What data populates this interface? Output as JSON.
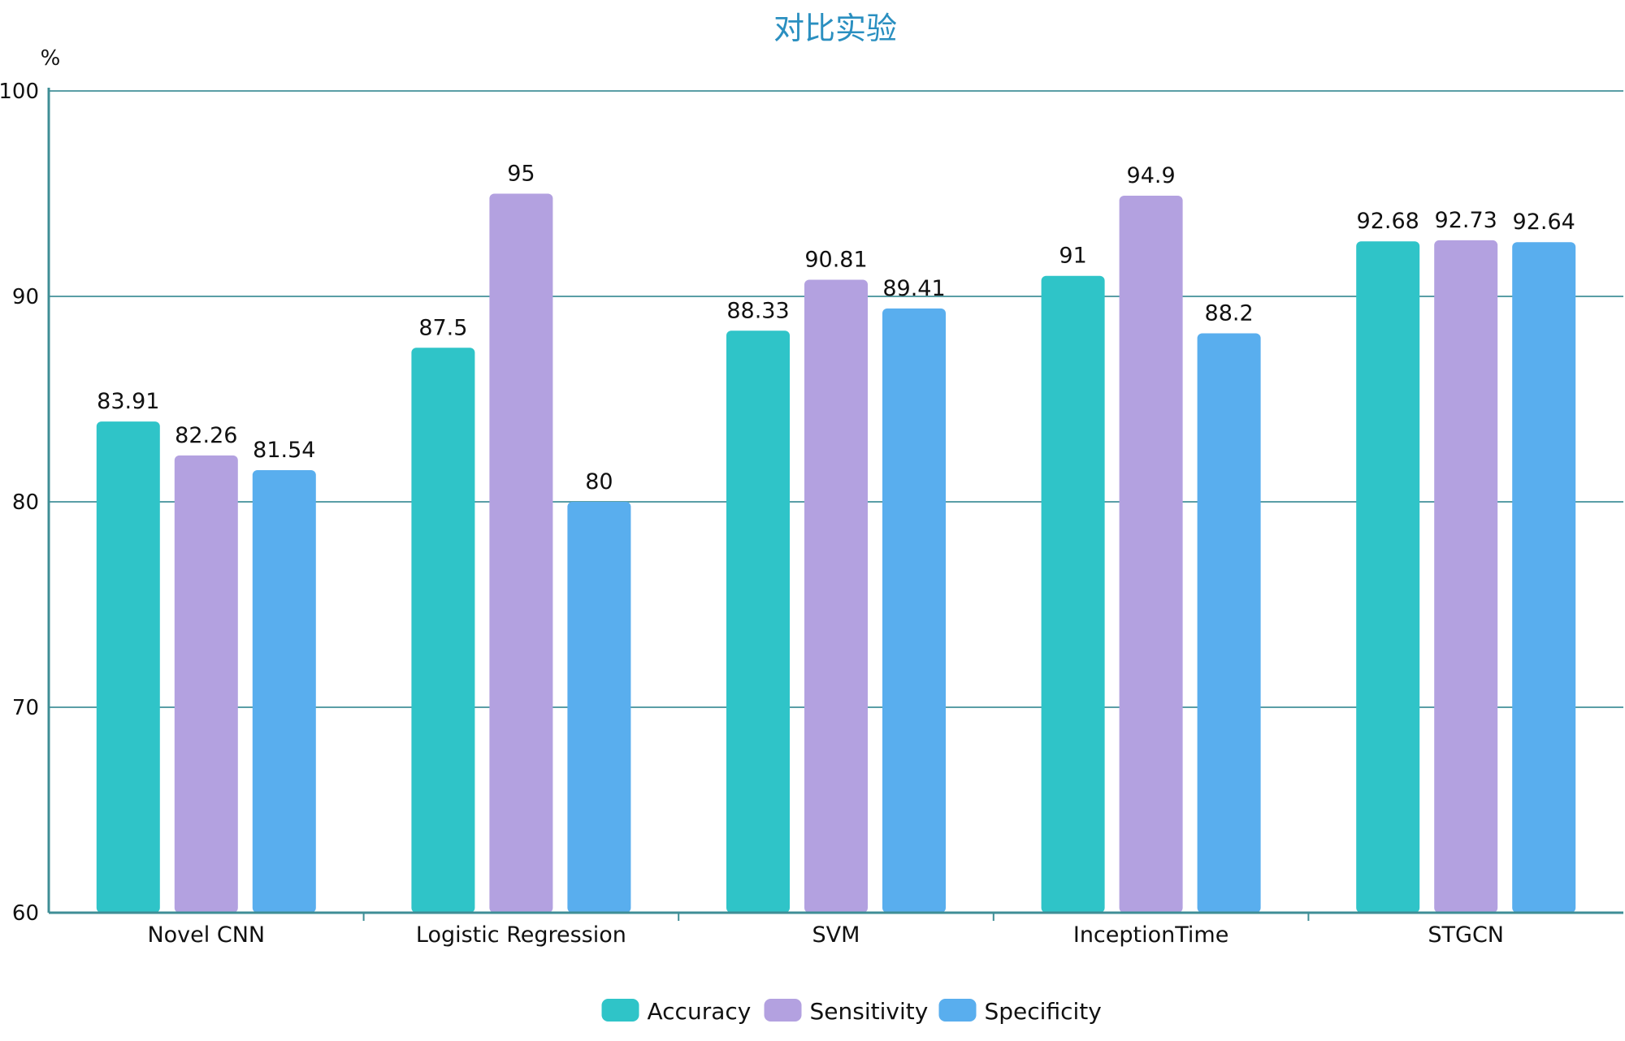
{
  "chart_data": {
    "type": "bar",
    "title": "对比实验",
    "ylabel": "%",
    "xlabel": "",
    "ylim": [
      60,
      100
    ],
    "yticks": [
      60,
      70,
      80,
      90,
      100
    ],
    "categories": [
      "Novel CNN",
      "Logistic Regression",
      "SVM",
      "InceptionTime",
      "STGCN"
    ],
    "series": [
      {
        "name": "Accuracy",
        "color": "#2fc4c8",
        "values": [
          83.91,
          87.5,
          88.33,
          91,
          92.68
        ]
      },
      {
        "name": "Sensitivity",
        "color": "#b3a1e0",
        "values": [
          82.26,
          95,
          90.81,
          94.9,
          92.73
        ]
      },
      {
        "name": "Specificity",
        "color": "#59aeee",
        "values": [
          81.54,
          80,
          89.41,
          88.2,
          92.64
        ]
      }
    ],
    "grid": true,
    "legend_position": "bottom-center",
    "colors": {
      "title": "#2a8fc0",
      "axis": "#3f8e96",
      "grid": "#5a9ea6"
    }
  }
}
